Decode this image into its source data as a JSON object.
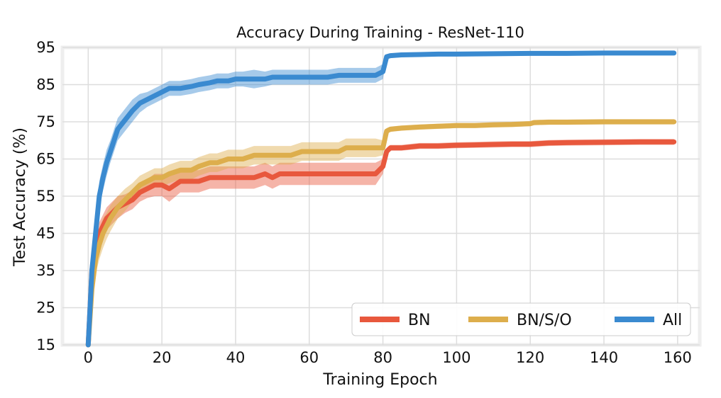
{
  "chart_data": {
    "type": "line",
    "title": "Accuracy During Training - ResNet-110",
    "xlabel": "Training Epoch",
    "ylabel": "Test Accuracy (%)",
    "xlim": [
      -7,
      166
    ],
    "ylim": [
      15,
      95
    ],
    "xticks": [
      0,
      20,
      40,
      60,
      80,
      100,
      120,
      140,
      160
    ],
    "yticks": [
      15,
      25,
      35,
      45,
      55,
      65,
      75,
      85,
      95
    ],
    "grid": true,
    "legend_placement": "lower-right",
    "colors": {
      "BN": "#e8583d",
      "BN/S/O": "#ddae4c",
      "All": "#3a8ad0",
      "grid": "#dddddd",
      "frame": "#eeeeee"
    },
    "series": [
      {
        "name": "BN",
        "x": [
          0,
          1,
          2,
          3,
          4,
          5,
          6,
          8,
          10,
          12,
          14,
          16,
          18,
          20,
          22,
          25,
          28,
          30,
          33,
          35,
          38,
          40,
          42,
          45,
          48,
          50,
          52,
          55,
          58,
          60,
          62,
          65,
          68,
          70,
          72,
          75,
          78,
          80,
          81,
          82,
          85,
          90,
          95,
          100,
          105,
          110,
          115,
          120,
          125,
          130,
          140,
          150,
          159
        ],
        "y": [
          15,
          35,
          42,
          45,
          47,
          49,
          50,
          52,
          53,
          54,
          56,
          57,
          58,
          58,
          57,
          59,
          59,
          59,
          60,
          60,
          60,
          60,
          60,
          60,
          61,
          60,
          61,
          61,
          61,
          61,
          61,
          61,
          61,
          61,
          61,
          61,
          61,
          63,
          67,
          68,
          68,
          68.5,
          68.5,
          68.7,
          68.8,
          68.9,
          69,
          69,
          69.3,
          69.4,
          69.5,
          69.6,
          69.6
        ],
        "band": [
          0.5,
          3,
          3,
          3,
          3,
          3,
          3,
          3,
          2.5,
          2.5,
          2.5,
          2.5,
          3,
          3,
          3.5,
          3,
          3,
          3,
          3,
          3,
          3,
          3,
          3,
          3,
          3,
          3,
          3,
          3,
          3,
          3,
          3,
          3,
          3,
          3,
          3,
          3,
          3,
          2,
          1,
          0.8,
          0.8,
          0.8,
          0.8,
          0.8,
          0.8,
          0.8,
          0.8,
          0.8,
          0.8,
          0.8,
          0.8,
          0.8,
          0.8
        ]
      },
      {
        "name": "BN/S/O",
        "x": [
          0,
          1,
          2,
          3,
          4,
          5,
          6,
          8,
          10,
          12,
          14,
          16,
          18,
          20,
          22,
          25,
          28,
          30,
          33,
          35,
          38,
          40,
          42,
          45,
          48,
          50,
          52,
          55,
          58,
          60,
          62,
          65,
          68,
          70,
          72,
          75,
          78,
          80,
          81,
          82,
          85,
          90,
          95,
          100,
          105,
          110,
          115,
          120,
          121,
          125,
          130,
          140,
          150,
          159
        ],
        "y": [
          15,
          30,
          38,
          42,
          45,
          47,
          49,
          52,
          54,
          56,
          58,
          59,
          60,
          60,
          61,
          62,
          62,
          63,
          64,
          64,
          65,
          65,
          65,
          66,
          66,
          66,
          66,
          66,
          67,
          67,
          67,
          67,
          67,
          68,
          68,
          68,
          68,
          68,
          72.5,
          73,
          73.3,
          73.6,
          73.8,
          74,
          74,
          74.2,
          74.3,
          74.5,
          74.8,
          74.9,
          74.9,
          75,
          75,
          75
        ],
        "band": [
          0.5,
          4,
          4,
          4,
          4,
          3.5,
          3.5,
          3,
          3,
          2.5,
          2.5,
          2.5,
          2.5,
          2.5,
          2.5,
          2.5,
          2.5,
          2.5,
          2.5,
          2.5,
          2.5,
          2.5,
          2.5,
          2.5,
          2.5,
          2.5,
          2.5,
          2.5,
          2.5,
          2.5,
          2.5,
          2.5,
          2.5,
          2.5,
          2.5,
          2.5,
          2.5,
          2,
          0.8,
          0.7,
          0.7,
          0.7,
          0.7,
          0.7,
          0.7,
          0.7,
          0.7,
          0.7,
          0.7,
          0.7,
          0.7,
          0.7,
          0.7,
          0.7
        ]
      },
      {
        "name": "All",
        "x": [
          0,
          1,
          2,
          3,
          4,
          5,
          6,
          7,
          8,
          10,
          12,
          14,
          16,
          18,
          20,
          22,
          25,
          28,
          30,
          33,
          35,
          38,
          40,
          42,
          45,
          48,
          50,
          52,
          55,
          58,
          60,
          62,
          65,
          68,
          70,
          72,
          75,
          78,
          80,
          81,
          82,
          85,
          90,
          95,
          100,
          110,
          120,
          130,
          140,
          150,
          159
        ],
        "y": [
          15,
          35,
          45,
          55,
          60,
          64,
          67,
          70,
          73,
          75.5,
          78,
          80,
          81,
          82,
          83,
          84,
          84,
          84.5,
          85,
          85.5,
          86,
          86,
          86.5,
          86.5,
          86.5,
          86.5,
          87,
          87,
          87,
          87,
          87,
          87,
          87,
          87.5,
          87.5,
          87.5,
          87.5,
          87.5,
          88.5,
          92.5,
          92.8,
          93,
          93.1,
          93.2,
          93.2,
          93.3,
          93.4,
          93.4,
          93.5,
          93.5,
          93.5
        ],
        "band": [
          0.5,
          3,
          4,
          4,
          3.5,
          3.5,
          3,
          3,
          3,
          3,
          3,
          2.5,
          2,
          2,
          2,
          2,
          2,
          2,
          2,
          2,
          2,
          2,
          2,
          2,
          2.5,
          2,
          2,
          2,
          2,
          2,
          2,
          2,
          2,
          2,
          2,
          2,
          2,
          2,
          2,
          0.5,
          0.4,
          0.4,
          0.4,
          0.4,
          0.4,
          0.4,
          0.4,
          0.4,
          0.4,
          0.4,
          0.4
        ]
      }
    ]
  }
}
